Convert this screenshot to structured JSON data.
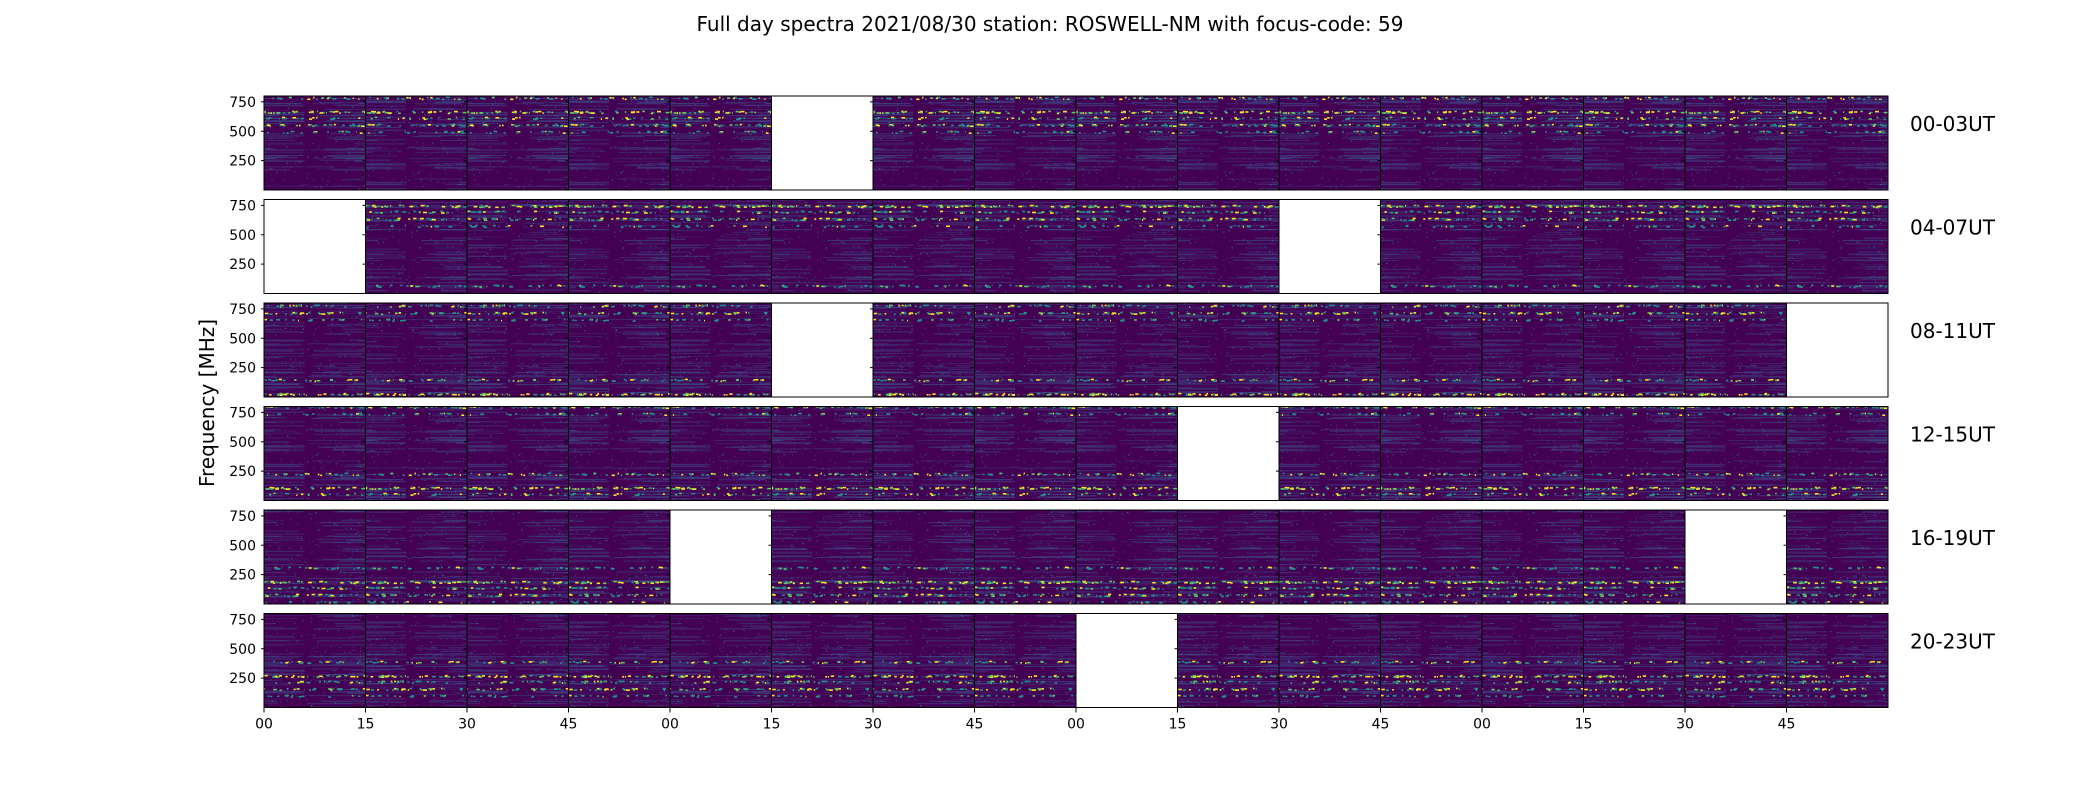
{
  "chart_data": {
    "type": "heatmap",
    "title": "Full day spectra 2021/08/30 station: ROSWELL-NM with focus-code: 59",
    "ylabel": "Frequency [MHz]",
    "yticks": [
      250,
      500,
      750
    ],
    "ylim": [
      0,
      800
    ],
    "xtick_labels": [
      "00",
      "15",
      "30",
      "45",
      "00",
      "15",
      "30",
      "45",
      "00",
      "15",
      "30",
      "45",
      "00",
      "15",
      "30",
      "45"
    ],
    "panels_per_row": 16,
    "panel_minutes": 15,
    "colormap": [
      "#440154",
      "#3b528b",
      "#21918c",
      "#5ec962",
      "#fde725"
    ],
    "rows": [
      {
        "label": "00-03UT",
        "missing_panels": [
          5
        ]
      },
      {
        "label": "04-07UT",
        "missing_panels": [
          0,
          10
        ]
      },
      {
        "label": "08-11UT",
        "missing_panels": [
          5,
          15
        ]
      },
      {
        "label": "12-15UT",
        "missing_panels": [
          9
        ]
      },
      {
        "label": "16-19UT",
        "missing_panels": [
          4,
          14
        ]
      },
      {
        "label": "20-23UT",
        "missing_panels": [
          8
        ]
      }
    ],
    "bright_bands_mhz": [
      {
        "freq": 770,
        "level": 0.55
      },
      {
        "freq": 650,
        "level": 0.9
      },
      {
        "freq": 600,
        "level": 0.45
      },
      {
        "freq": 540,
        "level": 0.6
      },
      {
        "freq": 480,
        "level": 0.3
      }
    ],
    "grid": false
  }
}
